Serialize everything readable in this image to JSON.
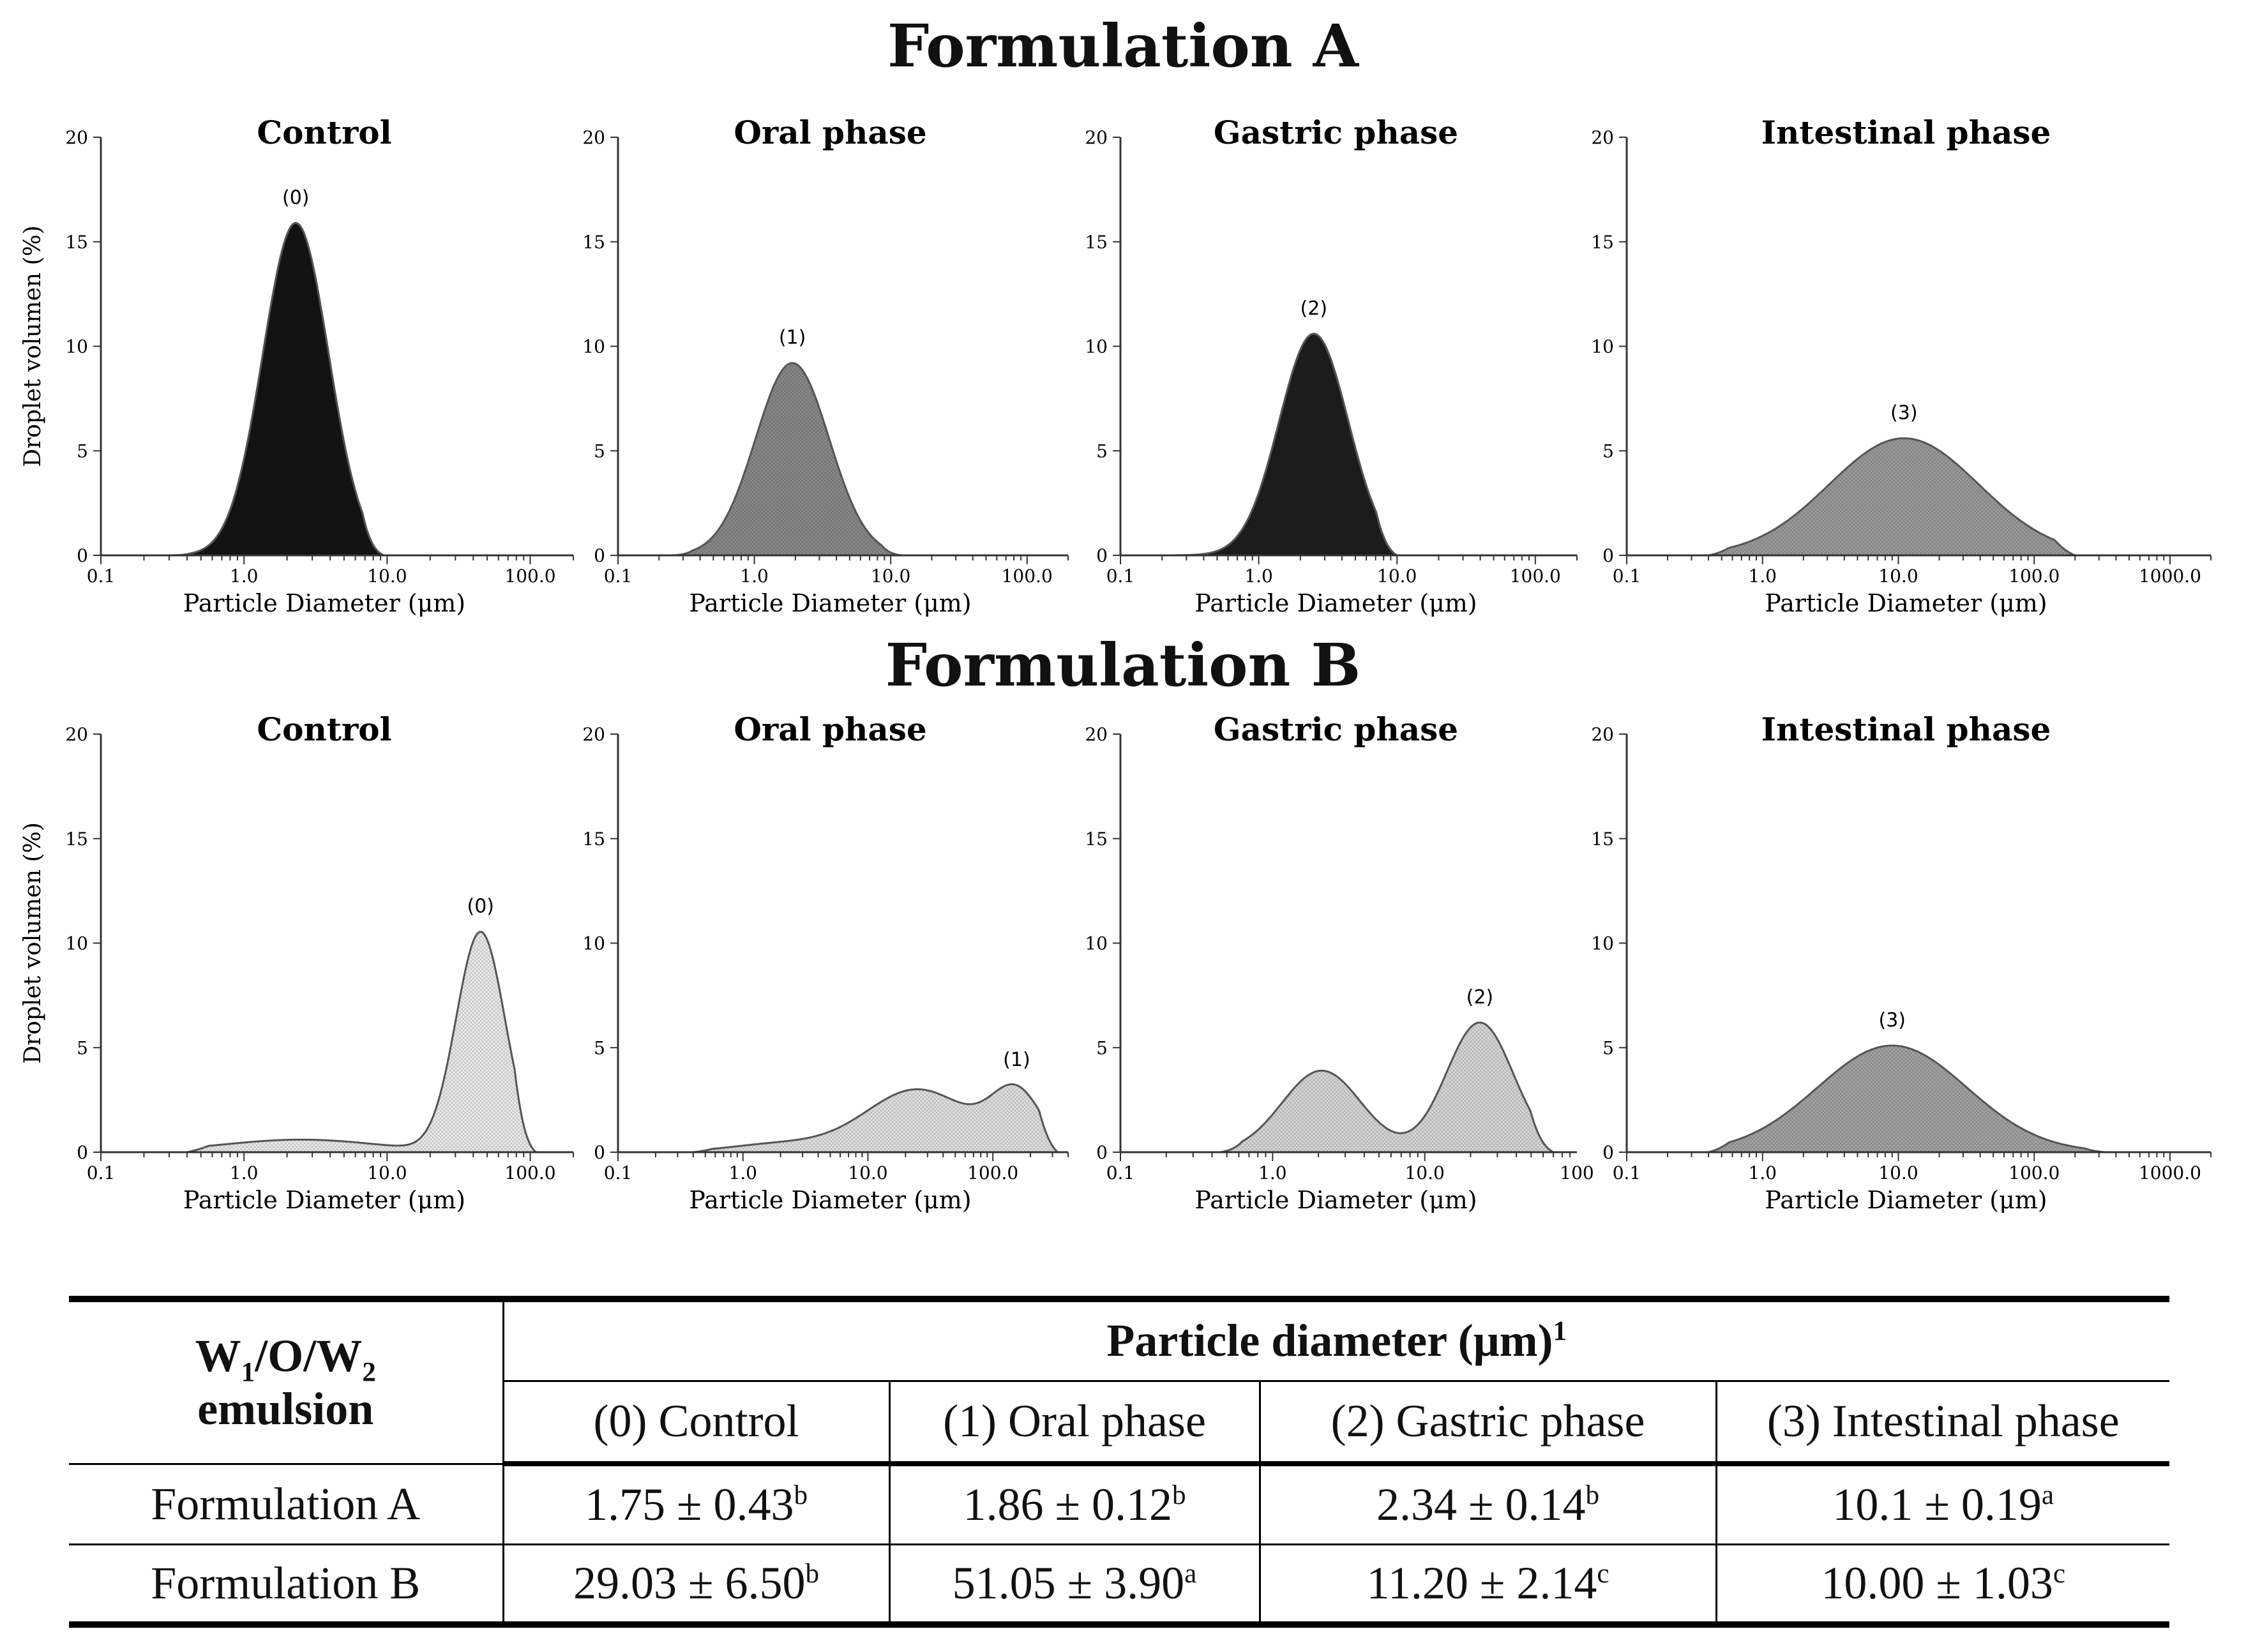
{
  "figure": {
    "formulation_a_title": "Formulation A",
    "formulation_b_title": "Formulation B"
  },
  "chart_data": [
    {
      "type": "area",
      "formulation": "A",
      "title": "Control",
      "ylabel": "Droplet volumen (%)",
      "xlabel": "Particle Diameter (μm)",
      "xscale": "log",
      "xlim": [
        0.1,
        200
      ],
      "ylim": [
        0,
        20
      ],
      "yticks": [
        "0",
        "5",
        "10",
        "15",
        "20"
      ],
      "xticks": [
        "0.1",
        "1.0",
        "10.0",
        "100.0"
      ],
      "fill": "#141414",
      "peak_label": "(0)",
      "modes": [
        {
          "center": 2.3,
          "height": 15.9,
          "sigma": 0.23
        }
      ],
      "range": [
        0.3,
        9.5
      ]
    },
    {
      "type": "area",
      "formulation": "A",
      "title": "Oral phase",
      "ylabel": "",
      "xlabel": "Particle Diameter (μm)",
      "xscale": "log",
      "xlim": [
        0.1,
        200
      ],
      "ylim": [
        0,
        20
      ],
      "yticks": [
        "0",
        "5",
        "10",
        "15",
        "20"
      ],
      "xticks": [
        "0.1",
        "1.0",
        "10.0",
        "100.0"
      ],
      "fill": "#8a8a8a",
      "peak_label": "(1)",
      "modes": [
        {
          "center": 1.9,
          "height": 9.2,
          "sigma": 0.27
        }
      ],
      "range": [
        0.25,
        12
      ]
    },
    {
      "type": "area",
      "formulation": "A",
      "title": "Gastric phase",
      "ylabel": "",
      "xlabel": "Particle Diameter (μm)",
      "xscale": "log",
      "xlim": [
        0.1,
        200
      ],
      "ylim": [
        0,
        20
      ],
      "yticks": [
        "0",
        "5",
        "10",
        "15",
        "20"
      ],
      "xticks": [
        "0.1",
        "1.0",
        "10.0",
        "100.0"
      ],
      "fill": "#1e1e1e",
      "peak_label": "(2)",
      "modes": [
        {
          "center": 2.5,
          "height": 10.6,
          "sigma": 0.25
        }
      ],
      "range": [
        0.2,
        10
      ]
    },
    {
      "type": "area",
      "formulation": "A",
      "title": "Intestinal phase",
      "ylabel": "",
      "xlabel": "Particle Diameter (μm)",
      "xscale": "log",
      "xlim": [
        0.1,
        2000
      ],
      "ylim": [
        0,
        20
      ],
      "yticks": [
        "0",
        "5",
        "10",
        "15",
        "20"
      ],
      "xticks": [
        "0.1",
        "1.0",
        "10.0",
        "100.0",
        "1000.0"
      ],
      "fill": "#9c9c9c",
      "peak_label": "(3)",
      "modes": [
        {
          "center": 11,
          "height": 5.6,
          "sigma": 0.55
        }
      ],
      "range": [
        0.4,
        200
      ]
    },
    {
      "type": "area",
      "formulation": "B",
      "title": "Control",
      "ylabel": "Droplet volumen (%)",
      "xlabel": "Particle Diameter (μm)",
      "xscale": "log",
      "xlim": [
        0.1,
        200
      ],
      "ylim": [
        0,
        20
      ],
      "yticks": [
        "0",
        "5",
        "10",
        "15",
        "20"
      ],
      "xticks": [
        "0.1",
        "1.0",
        "10.0",
        "100.0"
      ],
      "fill": "#ececec",
      "peak_label": "(0)",
      "modes": [
        {
          "center": 45,
          "height": 10.5,
          "sigma": 0.17
        },
        {
          "center": 2.5,
          "height": 0.6,
          "sigma": 0.55
        }
      ],
      "range": [
        0.4,
        110
      ]
    },
    {
      "type": "area",
      "formulation": "B",
      "title": "Oral phase",
      "ylabel": "",
      "xlabel": "Particle Diameter (μm)",
      "xscale": "log",
      "xlim": [
        0.1,
        400
      ],
      "ylim": [
        0,
        20
      ],
      "yticks": [
        "0",
        "5",
        "10",
        "15",
        "20"
      ],
      "xticks": [
        "0.1",
        "1.0",
        "10.0",
        "100.0"
      ],
      "fill": "#e2e2e2",
      "peak_label": "(1)",
      "modes": [
        {
          "center": 25,
          "height": 3.0,
          "sigma": 0.42
        },
        {
          "center": 155,
          "height": 2.7,
          "sigma": 0.2
        },
        {
          "center": 2,
          "height": 0.4,
          "sigma": 0.4
        }
      ],
      "range": [
        0.4,
        330
      ]
    },
    {
      "type": "area",
      "formulation": "B",
      "title": "Gastric phase",
      "ylabel": "",
      "xlabel": "Particle Diameter (μm)",
      "xscale": "log",
      "xlim": [
        0.1,
        100
      ],
      "ylim": [
        0,
        20
      ],
      "yticks": [
        "0",
        "5",
        "10",
        "15",
        "20"
      ],
      "xticks": [
        "0.1",
        "1.0",
        "10.0",
        "100"
      ],
      "fill": "#d8d8d8",
      "peak_label": "(2)",
      "modes": [
        {
          "center": 2.1,
          "height": 3.9,
          "sigma": 0.26
        },
        {
          "center": 23,
          "height": 6.2,
          "sigma": 0.22
        }
      ],
      "range": [
        0.45,
        70
      ]
    },
    {
      "type": "area",
      "formulation": "B",
      "title": "Intestinal phase",
      "ylabel": "",
      "xlabel": "Particle Diameter (μm)",
      "xscale": "log",
      "xlim": [
        0.1,
        2000
      ],
      "ylim": [
        0,
        20
      ],
      "yticks": [
        "0",
        "5",
        "10",
        "15",
        "20"
      ],
      "xticks": [
        "0.1",
        "1.0",
        "10.0",
        "100.0",
        "1000.0"
      ],
      "fill": "#a4a4a4",
      "peak_label": "(3)",
      "modes": [
        {
          "center": 9,
          "height": 5.1,
          "sigma": 0.55
        }
      ],
      "range": [
        0.4,
        330
      ]
    }
  ],
  "table": {
    "emulsion_header": "W1/O/W2 emulsion",
    "emulsion_header_line1_w": "W",
    "emulsion_header_line1_sub1": "1",
    "emulsion_header_line1_mid": "/O/W",
    "emulsion_header_line1_sub2": "2",
    "emulsion_header_line2": "emulsion",
    "group_header": "Particle diameter (μm)",
    "group_header_note": "1",
    "columns": [
      "(0) Control",
      "(1) Oral phase",
      "(2) Gastric phase",
      "(3) Intestinal phase"
    ],
    "rows": [
      {
        "label": "Formulation A",
        "cells": [
          {
            "value": "1.75 ± 0.43",
            "sup": "b"
          },
          {
            "value": "1.86 ± 0.12",
            "sup": "b"
          },
          {
            "value": "2.34 ± 0.14",
            "sup": "b"
          },
          {
            "value": "10.1 ± 0.19",
            "sup": "a"
          }
        ]
      },
      {
        "label": "Formulation B",
        "cells": [
          {
            "value": "29.03 ± 6.50",
            "sup": "b"
          },
          {
            "value": "51.05 ± 3.90",
            "sup": "a"
          },
          {
            "value": "11.20 ± 2.14",
            "sup": "c"
          },
          {
            "value": "10.00 ± 1.03",
            "sup": "c"
          }
        ]
      }
    ]
  }
}
